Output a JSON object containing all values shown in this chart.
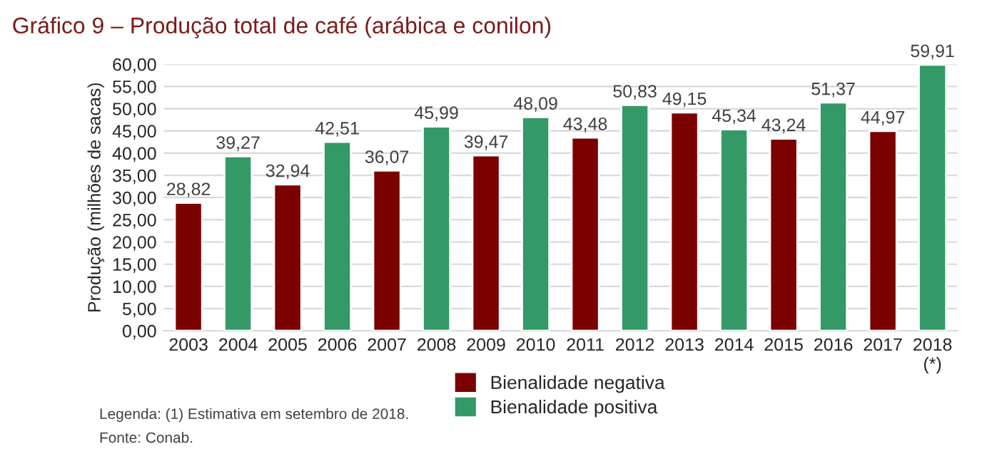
{
  "chart_data": {
    "type": "bar",
    "title": "Gráfico 9 – Produção total de café (arábica e conilon)",
    "ylabel": "Produção (milhões de sacas)",
    "categories": [
      "2003",
      "2004",
      "2005",
      "2006",
      "2007",
      "2008",
      "2009",
      "2010",
      "2011",
      "2012",
      "2013",
      "2014",
      "2015",
      "2016",
      "2017",
      "2018\n(*)"
    ],
    "series": [
      {
        "name": "Bienalidade negativa",
        "color": "#7b0000",
        "values": [
          28.82,
          null,
          32.94,
          null,
          36.07,
          null,
          39.47,
          null,
          43.48,
          null,
          49.15,
          null,
          43.24,
          null,
          44.97,
          null
        ],
        "value_labels": [
          "28,82",
          null,
          "32,94",
          null,
          "36,07",
          null,
          "39,47",
          null,
          "43,48",
          null,
          "49,15",
          null,
          "43,24",
          null,
          "44,97",
          null
        ]
      },
      {
        "name": "Bienalidade positiva",
        "color": "#339966",
        "values": [
          null,
          39.27,
          null,
          42.51,
          null,
          45.99,
          null,
          48.09,
          null,
          50.83,
          null,
          45.34,
          null,
          51.37,
          null,
          59.91
        ],
        "value_labels": [
          null,
          "39,27",
          null,
          "42,51",
          null,
          "45,99",
          null,
          "48,09",
          null,
          "50,83",
          null,
          "45,34",
          null,
          "51,37",
          null,
          "59,91"
        ]
      }
    ],
    "ylim": [
      0,
      60
    ],
    "yticks": [
      {
        "value": 0,
        "label": "0,00"
      },
      {
        "value": 5,
        "label": "5,00"
      },
      {
        "value": 10,
        "label": "10,00"
      },
      {
        "value": 15,
        "label": "15,00"
      },
      {
        "value": 20,
        "label": "20,00"
      },
      {
        "value": 25,
        "label": "25,00"
      },
      {
        "value": 30,
        "label": "30,00"
      },
      {
        "value": 35,
        "label": "35,00"
      },
      {
        "value": 40,
        "label": "40,00"
      },
      {
        "value": 45,
        "label": "45,00"
      },
      {
        "value": 50,
        "label": "50,00"
      },
      {
        "value": 55,
        "label": "55,00"
      },
      {
        "value": 60,
        "label": "60,00"
      }
    ],
    "grid": "y",
    "legend": "bottom",
    "annotations": [
      "Legenda: (1) Estimativa em setembro de 2018.",
      "Fonte: Conab."
    ]
  }
}
